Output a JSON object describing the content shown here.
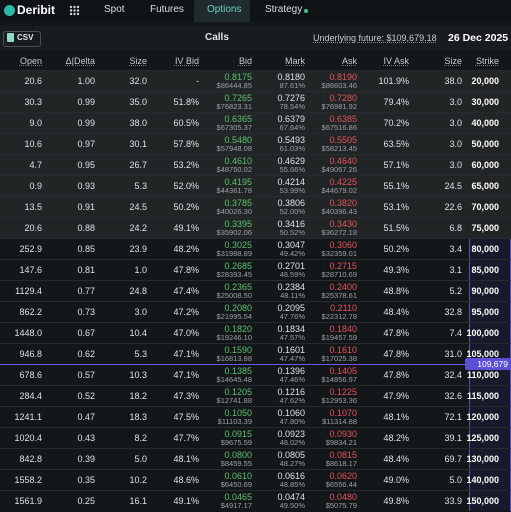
{
  "nav": {
    "logo": "Deribit",
    "items": [
      "Spot",
      "Futures",
      "Options",
      "Strategy"
    ]
  },
  "toolbar": {
    "csv": "CSV",
    "title": "Calls",
    "underlying": "Underlying future: $109,679.18",
    "date": "26 Dec 2025"
  },
  "table": {
    "columns": [
      "Open",
      "Δ|Delta",
      "Size",
      "IV Bid",
      "Bid",
      "Mark",
      "Ask",
      "IV Ask",
      "Size",
      "Strike"
    ],
    "rows": [
      [
        "20.6",
        "1.00",
        "32.0",
        "-",
        "0.8175",
        "$86444.85",
        "0.8180",
        "87.61%",
        "0.8190",
        "$86603.46",
        "101.9%",
        "38.0",
        "20,000"
      ],
      [
        "30.3",
        "0.99",
        "35.0",
        "51.8%",
        "0.7265",
        "$76823.31",
        "0.7276",
        "78.54%",
        "0.7280",
        "$76981.92",
        "79.4%",
        "3.0",
        "30,000"
      ],
      [
        "9.0",
        "0.99",
        "38.0",
        "60.5%",
        "0.6365",
        "$67305.37",
        "0.6379",
        "67.64%",
        "0.6385",
        "$67516.86",
        "70.2%",
        "3.0",
        "40,000"
      ],
      [
        "10.6",
        "0.97",
        "30.1",
        "57.8%",
        "0.5480",
        "$57948.08",
        "0.5493",
        "61.03%",
        "0.5505",
        "$58213.45",
        "63.5%",
        "3.0",
        "50,000"
      ],
      [
        "4.7",
        "0.95",
        "26.7",
        "53.2%",
        "0.4610",
        "$48750.02",
        "0.4629",
        "55.66%",
        "0.4640",
        "$49067.26",
        "57.1%",
        "3.0",
        "60,000"
      ],
      [
        "0.9",
        "0.93",
        "5.3",
        "52.0%",
        "0.4195",
        "$44361.78",
        "0.4214",
        "53.99%",
        "0.4225",
        "$44679.02",
        "55.1%",
        "24.5",
        "65,000"
      ],
      [
        "13.5",
        "0.91",
        "24.5",
        "50.2%",
        "0.3785",
        "$40026.30",
        "0.3806",
        "52.00%",
        "0.3820",
        "$40396.43",
        "53.1%",
        "22.6",
        "70,000"
      ],
      [
        "20.6",
        "0.88",
        "24.2",
        "49.1%",
        "0.3395",
        "$35902.06",
        "0.3416",
        "50.52%",
        "0.3430",
        "$36272.18",
        "51.5%",
        "6.8",
        "75,000"
      ],
      [
        "252.9",
        "0.85",
        "23.9",
        "48.2%",
        "0.3025",
        "$31988.89",
        "0.3047",
        "49.42%",
        "0.3060",
        "$32359.01",
        "50.2%",
        "3.4",
        "80,000"
      ],
      [
        "147.6",
        "0.81",
        "1.0",
        "47.8%",
        "0.2685",
        "$28393.45",
        "0.2701",
        "48.59%",
        "0.2715",
        "$28710.69",
        "49.3%",
        "3.1",
        "85,000"
      ],
      [
        "1129.4",
        "0.77",
        "24.8",
        "47.4%",
        "0.2365",
        "$25008.50",
        "0.2384",
        "48.11%",
        "0.2400",
        "$25378.61",
        "48.8%",
        "5.2",
        "90,000"
      ],
      [
        "862.2",
        "0.73",
        "3.0",
        "47.2%",
        "0.2080",
        "$21995.54",
        "0.2095",
        "47.76%",
        "0.2110",
        "$22312.78",
        "48.4%",
        "32.8",
        "95,000"
      ],
      [
        "1448.0",
        "0.67",
        "10.4",
        "47.0%",
        "0.1820",
        "$19246.10",
        "0.1834",
        "47.57%",
        "0.1840",
        "$19457.59",
        "47.8%",
        "7.4",
        "100,000"
      ],
      [
        "946.8",
        "0.62",
        "5.3",
        "47.1%",
        "0.1590",
        "$16813.88",
        "0.1601",
        "47.47%",
        "0.1610",
        "$17025.38",
        "47.8%",
        "31.0",
        "105,000"
      ],
      [
        "678.6",
        "0.57",
        "10.3",
        "47.1%",
        "0.1385",
        "$14645.48",
        "0.1396",
        "47.46%",
        "0.1405",
        "$14856.97",
        "47.8%",
        "32.4",
        "110,000"
      ],
      [
        "284.4",
        "0.52",
        "18.2",
        "47.3%",
        "0.1205",
        "$12741.88",
        "0.1216",
        "47.62%",
        "0.1225",
        "$12953.36",
        "47.9%",
        "32.6",
        "115,000"
      ],
      [
        "1241.1",
        "0.47",
        "18.3",
        "47.5%",
        "0.1050",
        "$11103.39",
        "0.1060",
        "47.80%",
        "0.1070",
        "$11314.88",
        "48.1%",
        "72.1",
        "120,000"
      ],
      [
        "1020.4",
        "0.43",
        "8.2",
        "47.7%",
        "0.0915",
        "$9675.59",
        "0.0923",
        "48.02%",
        "0.0930",
        "$9834.21",
        "48.2%",
        "39.1",
        "125,000"
      ],
      [
        "842.8",
        "0.39",
        "5.0",
        "48.1%",
        "0.0800",
        "$8459.55",
        "0.0805",
        "48.27%",
        "0.0815",
        "$8618.17",
        "48.4%",
        "69.7",
        "130,000"
      ],
      [
        "1558.2",
        "0.35",
        "10.2",
        "48.6%",
        "0.0610",
        "$6450.69",
        "0.0616",
        "48.85%",
        "0.0620",
        "$6556.44",
        "49.0%",
        "5.0",
        "140,000"
      ],
      [
        "1561.9",
        "0.25",
        "16.1",
        "49.1%",
        "0.0465",
        "$4917.17",
        "0.0474",
        "49.50%",
        "0.0480",
        "$5075.79",
        "49.8%",
        "33.9",
        "150,000"
      ]
    ]
  },
  "marker": {
    "label": "109,679"
  }
}
